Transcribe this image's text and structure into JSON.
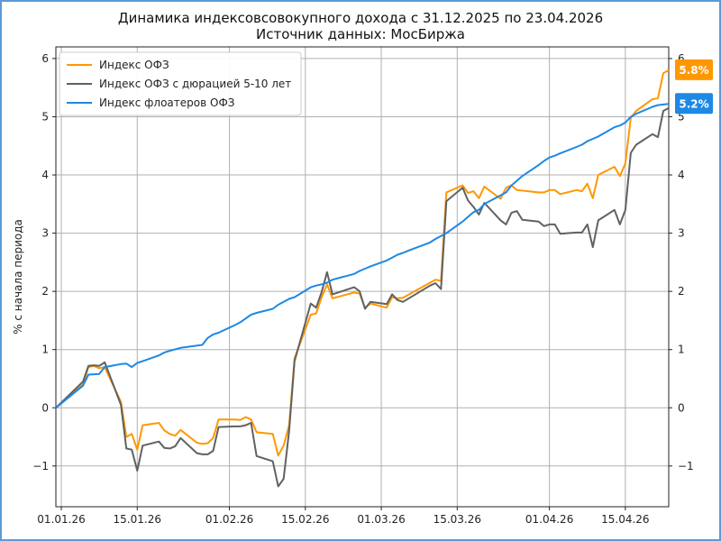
{
  "chart_data": {
    "type": "line",
    "title": "Динамика индексовсовокупного дохода с 31.12.2025 по 23.04.2026",
    "subtitle": "Источник данных: МосБиржа",
    "ylabel": "% с начала периода",
    "xlabel": "",
    "ylim": [
      -1.7,
      6.2
    ],
    "grid": true,
    "legend_position": "top-left",
    "x_start": "2025-12-31",
    "x_end": "2026-04-23",
    "x_ticks": [
      {
        "date": "2026-01-01",
        "label": "01.01.26"
      },
      {
        "date": "2026-01-15",
        "label": "15.01.26"
      },
      {
        "date": "2026-02-01",
        "label": "01.02.26"
      },
      {
        "date": "2026-02-15",
        "label": "15.02.26"
      },
      {
        "date": "2026-03-01",
        "label": "01.03.26"
      },
      {
        "date": "2026-03-15",
        "label": "15.03.26"
      },
      {
        "date": "2026-04-01",
        "label": "01.04.26"
      },
      {
        "date": "2026-04-15",
        "label": "15.04.26"
      }
    ],
    "y_ticks": [
      -1,
      0,
      1,
      2,
      3,
      4,
      5,
      6
    ],
    "y_tick_labels": [
      "−1",
      "0",
      "1",
      "2",
      "3",
      "4",
      "5",
      "6"
    ],
    "series": [
      {
        "name": "Индекс ОФЗ",
        "color": "#ff9800",
        "end_label": "5.8%",
        "points": [
          [
            "2025-12-31",
            0.0
          ],
          [
            "2026-01-05",
            0.4
          ],
          [
            "2026-01-06",
            0.7
          ],
          [
            "2026-01-07",
            0.72
          ],
          [
            "2026-01-08",
            0.68
          ],
          [
            "2026-01-09",
            0.7
          ],
          [
            "2026-01-12",
            0.1
          ],
          [
            "2026-01-13",
            -0.5
          ],
          [
            "2026-01-14",
            -0.45
          ],
          [
            "2026-01-15",
            -0.72
          ],
          [
            "2026-01-16",
            -0.3
          ],
          [
            "2026-01-19",
            -0.26
          ],
          [
            "2026-01-20",
            -0.39
          ],
          [
            "2026-01-21",
            -0.45
          ],
          [
            "2026-01-22",
            -0.48
          ],
          [
            "2026-01-23",
            -0.38
          ],
          [
            "2026-01-26",
            -0.6
          ],
          [
            "2026-01-27",
            -0.62
          ],
          [
            "2026-01-28",
            -0.61
          ],
          [
            "2026-01-29",
            -0.52
          ],
          [
            "2026-01-30",
            -0.2
          ],
          [
            "2026-02-02",
            -0.2
          ],
          [
            "2026-02-03",
            -0.21
          ],
          [
            "2026-02-04",
            -0.16
          ],
          [
            "2026-02-05",
            -0.2
          ],
          [
            "2026-02-06",
            -0.42
          ],
          [
            "2026-02-09",
            -0.45
          ],
          [
            "2026-02-10",
            -0.82
          ],
          [
            "2026-02-11",
            -0.65
          ],
          [
            "2026-02-12",
            -0.3
          ],
          [
            "2026-02-13",
            0.85
          ],
          [
            "2026-02-16",
            1.6
          ],
          [
            "2026-02-17",
            1.62
          ],
          [
            "2026-02-18",
            1.9
          ],
          [
            "2026-02-19",
            2.12
          ],
          [
            "2026-02-20",
            1.88
          ],
          [
            "2026-02-24",
            1.98
          ],
          [
            "2026-02-25",
            1.96
          ],
          [
            "2026-02-26",
            1.72
          ],
          [
            "2026-02-27",
            1.79
          ],
          [
            "2026-03-02",
            1.72
          ],
          [
            "2026-03-03",
            1.9
          ],
          [
            "2026-03-04",
            1.88
          ],
          [
            "2026-03-05",
            1.89
          ],
          [
            "2026-03-10",
            2.15
          ],
          [
            "2026-03-11",
            2.2
          ],
          [
            "2026-03-12",
            2.18
          ],
          [
            "2026-03-13",
            3.7
          ],
          [
            "2026-03-16",
            3.82
          ],
          [
            "2026-03-17",
            3.69
          ],
          [
            "2026-03-18",
            3.72
          ],
          [
            "2026-03-19",
            3.6
          ],
          [
            "2026-03-20",
            3.8
          ],
          [
            "2026-03-23",
            3.59
          ],
          [
            "2026-03-24",
            3.78
          ],
          [
            "2026-03-25",
            3.82
          ],
          [
            "2026-03-26",
            3.74
          ],
          [
            "2026-03-30",
            3.7
          ],
          [
            "2026-03-31",
            3.7
          ],
          [
            "2026-04-01",
            3.74
          ],
          [
            "2026-04-02",
            3.74
          ],
          [
            "2026-04-03",
            3.67
          ],
          [
            "2026-04-06",
            3.74
          ],
          [
            "2026-04-07",
            3.72
          ],
          [
            "2026-04-08",
            3.85
          ],
          [
            "2026-04-09",
            3.6
          ],
          [
            "2026-04-10",
            4.0
          ],
          [
            "2026-04-13",
            4.14
          ],
          [
            "2026-04-14",
            3.98
          ],
          [
            "2026-04-15",
            4.2
          ],
          [
            "2026-04-16",
            4.98
          ],
          [
            "2026-04-17",
            5.1
          ],
          [
            "2026-04-20",
            5.3
          ],
          [
            "2026-04-21",
            5.32
          ],
          [
            "2026-04-22",
            5.75
          ],
          [
            "2026-04-23",
            5.8
          ]
        ]
      },
      {
        "name": "Индекс ОФЗ с дюрацией 5-10 лет",
        "color": "#616161",
        "points": [
          [
            "2025-12-31",
            0.0
          ],
          [
            "2026-01-05",
            0.45
          ],
          [
            "2026-01-06",
            0.72
          ],
          [
            "2026-01-07",
            0.73
          ],
          [
            "2026-01-08",
            0.72
          ],
          [
            "2026-01-09",
            0.78
          ],
          [
            "2026-01-12",
            0.05
          ],
          [
            "2026-01-13",
            -0.7
          ],
          [
            "2026-01-14",
            -0.72
          ],
          [
            "2026-01-15",
            -1.08
          ],
          [
            "2026-01-16",
            -0.65
          ],
          [
            "2026-01-19",
            -0.58
          ],
          [
            "2026-01-20",
            -0.69
          ],
          [
            "2026-01-21",
            -0.7
          ],
          [
            "2026-01-22",
            -0.66
          ],
          [
            "2026-01-23",
            -0.52
          ],
          [
            "2026-01-26",
            -0.78
          ],
          [
            "2026-01-27",
            -0.8
          ],
          [
            "2026-01-28",
            -0.8
          ],
          [
            "2026-01-29",
            -0.74
          ],
          [
            "2026-01-30",
            -0.33
          ],
          [
            "2026-02-02",
            -0.32
          ],
          [
            "2026-02-03",
            -0.32
          ],
          [
            "2026-02-04",
            -0.3
          ],
          [
            "2026-02-05",
            -0.26
          ],
          [
            "2026-02-06",
            -0.83
          ],
          [
            "2026-02-09",
            -0.92
          ],
          [
            "2026-02-10",
            -1.35
          ],
          [
            "2026-02-11",
            -1.22
          ],
          [
            "2026-02-12",
            -0.4
          ],
          [
            "2026-02-13",
            0.8
          ],
          [
            "2026-02-16",
            1.79
          ],
          [
            "2026-02-17",
            1.72
          ],
          [
            "2026-02-18",
            1.99
          ],
          [
            "2026-02-19",
            2.33
          ],
          [
            "2026-02-20",
            1.95
          ],
          [
            "2026-02-24",
            2.07
          ],
          [
            "2026-02-25",
            2.0
          ],
          [
            "2026-02-26",
            1.7
          ],
          [
            "2026-02-27",
            1.82
          ],
          [
            "2026-03-02",
            1.78
          ],
          [
            "2026-03-03",
            1.95
          ],
          [
            "2026-03-04",
            1.85
          ],
          [
            "2026-03-05",
            1.82
          ],
          [
            "2026-03-10",
            2.1
          ],
          [
            "2026-03-11",
            2.14
          ],
          [
            "2026-03-12",
            2.04
          ],
          [
            "2026-03-13",
            3.55
          ],
          [
            "2026-03-16",
            3.78
          ],
          [
            "2026-03-17",
            3.56
          ],
          [
            "2026-03-18",
            3.45
          ],
          [
            "2026-03-19",
            3.32
          ],
          [
            "2026-03-20",
            3.52
          ],
          [
            "2026-03-23",
            3.22
          ],
          [
            "2026-03-24",
            3.15
          ],
          [
            "2026-03-25",
            3.35
          ],
          [
            "2026-03-26",
            3.38
          ],
          [
            "2026-03-27",
            3.23
          ],
          [
            "2026-03-30",
            3.2
          ],
          [
            "2026-03-31",
            3.12
          ],
          [
            "2026-04-01",
            3.15
          ],
          [
            "2026-04-02",
            3.15
          ],
          [
            "2026-04-03",
            2.99
          ],
          [
            "2026-04-06",
            3.01
          ],
          [
            "2026-04-07",
            3.01
          ],
          [
            "2026-04-08",
            3.15
          ],
          [
            "2026-04-09",
            2.76
          ],
          [
            "2026-04-10",
            3.22
          ],
          [
            "2026-04-13",
            3.4
          ],
          [
            "2026-04-14",
            3.15
          ],
          [
            "2026-04-15",
            3.4
          ],
          [
            "2026-04-16",
            4.38
          ],
          [
            "2026-04-17",
            4.52
          ],
          [
            "2026-04-20",
            4.7
          ],
          [
            "2026-04-21",
            4.65
          ],
          [
            "2026-04-22",
            5.1
          ],
          [
            "2026-04-23",
            5.15
          ]
        ]
      },
      {
        "name": "Индекс флоатеров ОФЗ",
        "color": "#1e88e5",
        "end_label": "5.2%",
        "points": [
          [
            "2025-12-31",
            0.0
          ],
          [
            "2026-01-05",
            0.38
          ],
          [
            "2026-01-06",
            0.57
          ],
          [
            "2026-01-08",
            0.58
          ],
          [
            "2026-01-09",
            0.7
          ],
          [
            "2026-01-12",
            0.75
          ],
          [
            "2026-01-13",
            0.76
          ],
          [
            "2026-01-14",
            0.7
          ],
          [
            "2026-01-15",
            0.77
          ],
          [
            "2026-01-16",
            0.8
          ],
          [
            "2026-01-19",
            0.9
          ],
          [
            "2026-01-20",
            0.95
          ],
          [
            "2026-01-21",
            0.98
          ],
          [
            "2026-01-23",
            1.03
          ],
          [
            "2026-01-27",
            1.08
          ],
          [
            "2026-01-28",
            1.2
          ],
          [
            "2026-01-29",
            1.26
          ],
          [
            "2026-01-30",
            1.29
          ],
          [
            "2026-02-02",
            1.42
          ],
          [
            "2026-02-03",
            1.47
          ],
          [
            "2026-02-05",
            1.6
          ],
          [
            "2026-02-06",
            1.63
          ],
          [
            "2026-02-09",
            1.7
          ],
          [
            "2026-02-10",
            1.77
          ],
          [
            "2026-02-12",
            1.87
          ],
          [
            "2026-02-13",
            1.9
          ],
          [
            "2026-02-16",
            2.07
          ],
          [
            "2026-02-17",
            2.1
          ],
          [
            "2026-02-18",
            2.12
          ],
          [
            "2026-02-19",
            2.15
          ],
          [
            "2026-02-20",
            2.2
          ],
          [
            "2026-02-24",
            2.3
          ],
          [
            "2026-02-25",
            2.35
          ],
          [
            "2026-02-26",
            2.39
          ],
          [
            "2026-02-27",
            2.43
          ],
          [
            "2026-03-02",
            2.53
          ],
          [
            "2026-03-03",
            2.58
          ],
          [
            "2026-03-04",
            2.63
          ],
          [
            "2026-03-05",
            2.66
          ],
          [
            "2026-03-06",
            2.7
          ],
          [
            "2026-03-10",
            2.84
          ],
          [
            "2026-03-11",
            2.9
          ],
          [
            "2026-03-12",
            2.95
          ],
          [
            "2026-03-13",
            3.0
          ],
          [
            "2026-03-16",
            3.2
          ],
          [
            "2026-03-17",
            3.28
          ],
          [
            "2026-03-18",
            3.36
          ],
          [
            "2026-03-19",
            3.4
          ],
          [
            "2026-03-20",
            3.5
          ],
          [
            "2026-03-23",
            3.65
          ],
          [
            "2026-03-24",
            3.7
          ],
          [
            "2026-03-25",
            3.82
          ],
          [
            "2026-03-26",
            3.9
          ],
          [
            "2026-03-27",
            3.98
          ],
          [
            "2026-03-30",
            4.17
          ],
          [
            "2026-03-31",
            4.24
          ],
          [
            "2026-04-01",
            4.3
          ],
          [
            "2026-04-02",
            4.33
          ],
          [
            "2026-04-03",
            4.37
          ],
          [
            "2026-04-06",
            4.48
          ],
          [
            "2026-04-07",
            4.52
          ],
          [
            "2026-04-08",
            4.58
          ],
          [
            "2026-04-09",
            4.62
          ],
          [
            "2026-04-10",
            4.66
          ],
          [
            "2026-04-13",
            4.82
          ],
          [
            "2026-04-14",
            4.85
          ],
          [
            "2026-04-15",
            4.9
          ],
          [
            "2026-04-16",
            5.0
          ],
          [
            "2026-04-17",
            5.05
          ],
          [
            "2026-04-20",
            5.17
          ],
          [
            "2026-04-21",
            5.2
          ],
          [
            "2026-04-22",
            5.21
          ],
          [
            "2026-04-23",
            5.22
          ]
        ]
      }
    ]
  }
}
